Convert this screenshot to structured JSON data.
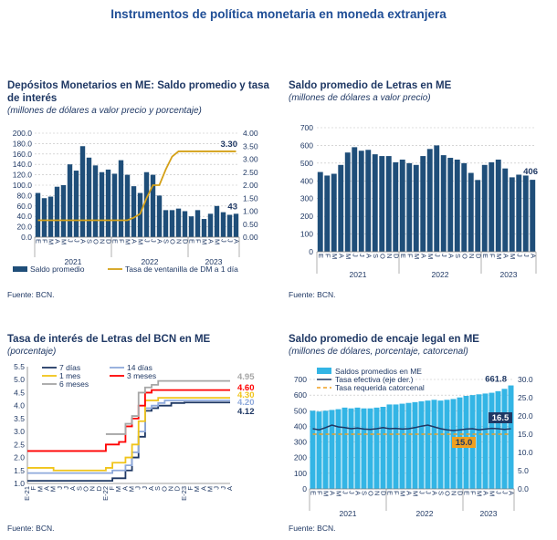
{
  "page": {
    "title": "Instrumentos de política monetaria en moneda extranjera"
  },
  "chart_data": [
    {
      "type": "bar",
      "title": "Depósitos Monetarios en ME: Saldo promedio y tasa de interés",
      "subtitle": "(millones de dólares a valor precio y porcentaje)",
      "source": "Fuente: BCN.",
      "categories": [
        "E",
        "F",
        "M",
        "A",
        "M",
        "J",
        "J",
        "A",
        "S",
        "O",
        "N",
        "D",
        "E",
        "F",
        "M",
        "A",
        "M",
        "J",
        "J",
        "A",
        "S",
        "O",
        "N",
        "D",
        "E",
        "F",
        "M",
        "A",
        "M",
        "J",
        "J",
        "A"
      ],
      "years": [
        "2021",
        "2022",
        "2023"
      ],
      "ylim": [
        0,
        200
      ],
      "y_ticks": [
        "0.0",
        "20.0",
        "40.0",
        "60.0",
        "80.0",
        "100.0",
        "120.0",
        "140.0",
        "160.0",
        "180.0",
        "200.0"
      ],
      "y2lim": [
        0,
        4
      ],
      "y2_ticks": [
        "0.00",
        "0.50",
        "1.00",
        "1.50",
        "2.00",
        "2.50",
        "3.00",
        "3.50",
        "4.00"
      ],
      "series": [
        {
          "name": "Saldo promedio",
          "type": "bar",
          "color": "#1f4e79",
          "values": [
            85,
            75,
            78,
            97,
            100,
            140,
            128,
            175,
            153,
            138,
            125,
            130,
            122,
            148,
            120,
            98,
            85,
            125,
            120,
            80,
            52,
            52,
            55,
            50,
            40,
            52,
            35,
            45,
            60,
            48,
            43,
            45
          ]
        },
        {
          "name": "Tasa de ventanilla de DM a 1 día",
          "type": "line",
          "color": "#d4a017",
          "axis": "right",
          "values": [
            0.65,
            0.65,
            0.65,
            0.65,
            0.65,
            0.65,
            0.65,
            0.65,
            0.65,
            0.65,
            0.65,
            0.65,
            0.65,
            0.65,
            0.65,
            0.75,
            0.9,
            1.5,
            2.0,
            2.0,
            2.6,
            3.1,
            3.3,
            3.3,
            3.3,
            3.3,
            3.3,
            3.3,
            3.3,
            3.3,
            3.3,
            3.3
          ]
        }
      ],
      "annotations": [
        {
          "text": "3.30"
        },
        {
          "text": "43"
        }
      ]
    },
    {
      "type": "bar",
      "title": "Saldo promedio de Letras en ME",
      "subtitle": "(millones de dólares a valor precio)",
      "source": "Fuente: BCN.",
      "categories": [
        "E",
        "F",
        "M",
        "A",
        "M",
        "J",
        "J",
        "A",
        "S",
        "O",
        "N",
        "D",
        "E",
        "F",
        "M",
        "A",
        "M",
        "J",
        "J",
        "A",
        "S",
        "O",
        "N",
        "D",
        "E",
        "F",
        "M",
        "A",
        "M",
        "J",
        "J",
        "A"
      ],
      "years": [
        "2021",
        "2022",
        "2023"
      ],
      "ylim": [
        0,
        700
      ],
      "y_ticks": [
        "0",
        "100",
        "200",
        "300",
        "400",
        "500",
        "600",
        "700"
      ],
      "series": [
        {
          "name": "Saldo promedio de Letras",
          "color": "#1f4e79",
          "values": [
            450,
            430,
            440,
            490,
            560,
            590,
            570,
            575,
            550,
            540,
            540,
            505,
            520,
            500,
            490,
            540,
            580,
            600,
            545,
            530,
            520,
            500,
            445,
            405,
            490,
            505,
            520,
            470,
            420,
            435,
            430,
            406
          ]
        }
      ],
      "annotations": [
        {
          "text": "406"
        }
      ]
    },
    {
      "type": "line",
      "title": "Tasa de interés de Letras del BCN en ME",
      "subtitle": "(porcentaje)",
      "source": "Fuente: BCN.",
      "x_labels": [
        "E-21",
        "F",
        "M",
        "A",
        "M",
        "J",
        "J",
        "A",
        "S",
        "O",
        "N",
        "D",
        "E-22",
        "F",
        "M",
        "A",
        "M",
        "J",
        "J",
        "A",
        "S",
        "O",
        "N",
        "D",
        "E-23",
        "F",
        "M",
        "A",
        "M",
        "J",
        "J",
        "A"
      ],
      "ylim": [
        1.0,
        5.5
      ],
      "y_ticks": [
        "1.0",
        "1.5",
        "2.0",
        "2.5",
        "3.0",
        "3.5",
        "4.0",
        "4.5",
        "5.0",
        "5.5"
      ],
      "series": [
        {
          "name": "7 días",
          "color": "#1f3864",
          "values": [
            1.1,
            1.1,
            1.1,
            1.1,
            1.1,
            1.1,
            1.1,
            1.1,
            1.1,
            1.1,
            1.1,
            1.1,
            1.1,
            1.2,
            1.2,
            1.5,
            2.0,
            2.8,
            3.8,
            3.9,
            4.0,
            4.0,
            4.1,
            4.1,
            4.12,
            4.12,
            4.12,
            4.12,
            4.12,
            4.12,
            4.12,
            4.12
          ]
        },
        {
          "name": "14 días",
          "color": "#8ea9db",
          "values": [
            1.4,
            1.4,
            1.4,
            1.4,
            1.4,
            1.4,
            1.4,
            1.4,
            1.4,
            1.4,
            1.4,
            1.4,
            1.4,
            1.5,
            1.5,
            1.7,
            2.2,
            3.0,
            3.9,
            4.0,
            4.1,
            4.2,
            4.2,
            4.2,
            4.2,
            4.2,
            4.2,
            4.2,
            4.2,
            4.2,
            4.2,
            4.2
          ]
        },
        {
          "name": "1 mes",
          "color": "#f0c419",
          "values": [
            1.6,
            1.6,
            1.6,
            1.6,
            1.5,
            1.5,
            1.5,
            1.5,
            1.5,
            1.5,
            1.5,
            1.5,
            1.6,
            1.8,
            1.8,
            2.0,
            2.5,
            3.4,
            4.2,
            4.2,
            4.3,
            4.3,
            4.3,
            4.3,
            4.3,
            4.3,
            4.3,
            4.3,
            4.3,
            4.3,
            4.3,
            4.3
          ]
        },
        {
          "name": "3 meses",
          "color": "#ff0000",
          "values": [
            2.25,
            2.25,
            2.25,
            2.25,
            2.25,
            2.25,
            2.25,
            2.25,
            2.25,
            2.25,
            2.25,
            2.25,
            2.5,
            2.5,
            2.6,
            3.2,
            3.5,
            4.0,
            4.5,
            4.6,
            4.6,
            4.6,
            4.6,
            4.6,
            4.6,
            4.6,
            4.6,
            4.6,
            4.6,
            4.6,
            4.6,
            4.6
          ]
        },
        {
          "name": "6 meses",
          "color": "#a6a6a6",
          "values": [
            null,
            null,
            null,
            null,
            null,
            null,
            null,
            null,
            null,
            null,
            null,
            null,
            2.9,
            2.9,
            2.9,
            3.3,
            3.6,
            4.5,
            4.7,
            4.8,
            4.95,
            4.95,
            4.95,
            4.95,
            4.95,
            4.95,
            4.95,
            4.95,
            4.95,
            4.95,
            4.95,
            4.95
          ]
        }
      ],
      "end_labels": [
        "4.95",
        "4.60",
        "4.30",
        "4.20",
        "4.12"
      ],
      "legend": "top-left"
    },
    {
      "type": "bar",
      "title": "Saldo promedio de encaje legal en ME",
      "subtitle": "(millones de dólares, porcentaje, catorcenal)",
      "source": "Fuente: BCN.",
      "years": [
        "2021",
        "2022",
        "2023"
      ],
      "ylim": [
        0,
        700
      ],
      "y_ticks": [
        "0",
        "100",
        "200",
        "300",
        "400",
        "500",
        "600",
        "700"
      ],
      "y2lim": [
        0,
        30
      ],
      "y2_ticks": [
        "0.0",
        "5.0",
        "10.0",
        "15.0",
        "20.0",
        "25.0",
        "30.0"
      ],
      "series": [
        {
          "name": "Saldos promedios en ME",
          "type": "bar",
          "color": "#33b5e5",
          "values": [
            500,
            495,
            500,
            505,
            510,
            520,
            515,
            520,
            515,
            515,
            520,
            525,
            540,
            540,
            545,
            550,
            555,
            560,
            565,
            570,
            565,
            570,
            575,
            585,
            595,
            600,
            605,
            610,
            615,
            625,
            640,
            661.8
          ]
        },
        {
          "name": "Tasa efectiva (eje der.)",
          "type": "line",
          "color": "#1f3864",
          "axis": "right",
          "values": [
            16.5,
            16.2,
            16.8,
            17.5,
            17.0,
            16.8,
            16.5,
            16.7,
            16.4,
            16.3,
            16.5,
            16.8,
            16.5,
            16.6,
            16.4,
            16.5,
            16.8,
            17.2,
            17.5,
            17.0,
            16.5,
            16.2,
            16.0,
            16.2,
            16.4,
            16.5,
            16.2,
            16.4,
            16.6,
            16.5,
            16.3,
            16.5
          ]
        },
        {
          "name": "Tasa requerida catorcenal",
          "type": "line",
          "color": "#f0a020",
          "axis": "right",
          "values": [
            15,
            15,
            15,
            15,
            15,
            15,
            15,
            15,
            15,
            15,
            15,
            15,
            15,
            15,
            15,
            15,
            15,
            15,
            15,
            15,
            15,
            15,
            15,
            15,
            15,
            15,
            15,
            15,
            15,
            15,
            15,
            15
          ]
        }
      ],
      "annotations": [
        {
          "text": "661.8"
        },
        {
          "text": "16.5"
        },
        {
          "text": "15.0"
        }
      ],
      "legend": "top-left"
    }
  ]
}
